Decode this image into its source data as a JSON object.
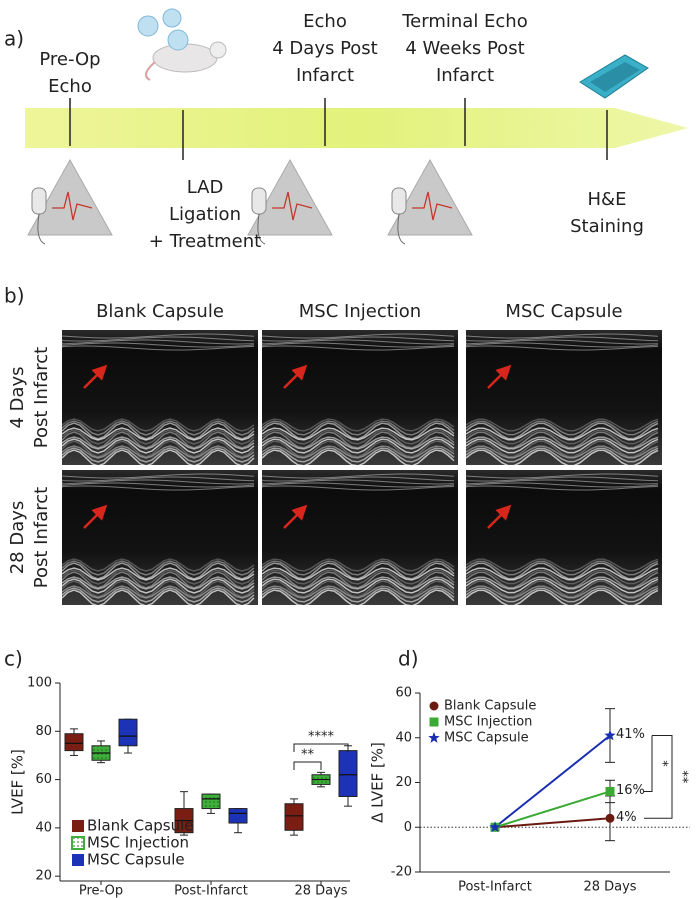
{
  "panel_a": {
    "label": "a)",
    "events": [
      {
        "lines": [
          "Pre-Op",
          "Echo"
        ]
      },
      {
        "lines": [
          "LAD",
          "Ligation",
          "+ Treatment"
        ]
      },
      {
        "lines": [
          "Echo",
          "4 Days Post",
          "Infarct"
        ]
      },
      {
        "lines": [
          "Terminal Echo",
          "4 Weeks Post",
          "Infarct"
        ]
      },
      {
        "lines": [
          "H&E",
          "Staining"
        ]
      }
    ]
  },
  "panel_b": {
    "label": "b)",
    "columns": [
      "Blank Capsule",
      "MSC Injection",
      "MSC Capsule"
    ],
    "rows": [
      [
        "4 Days",
        "Post Infarct"
      ],
      [
        "28 Days",
        "Post Infarct"
      ]
    ]
  },
  "chart_data": [
    {
      "type": "box",
      "label": "c)",
      "ylabel": "LVEF [%]",
      "categories": [
        "Pre-Op",
        "Post-Infarct",
        "28 Days"
      ],
      "series": [
        {
          "name": "Blank Capsule",
          "color": "#7a1d12",
          "values": [
            [
              70,
              72,
              75,
              79,
              81
            ],
            [
              37,
              38,
              43,
              48,
              55
            ],
            [
              37,
              39,
              45,
              50,
              52
            ]
          ]
        },
        {
          "name": "MSC Injection",
          "color": "#3fae3b",
          "values": [
            [
              67,
              68,
              71,
              74,
              76
            ],
            [
              46,
              48,
              52,
              54,
              54
            ],
            [
              57,
              58,
              60,
              62,
              63
            ]
          ]
        },
        {
          "name": "MSC Capsule",
          "color": "#1c33b8",
          "values": [
            [
              71,
              74,
              78,
              85,
              85
            ],
            [
              38,
              42,
              46,
              48,
              48
            ],
            [
              49,
              53,
              62,
              72,
              74
            ]
          ]
        }
      ],
      "ylim": [
        18,
        100
      ],
      "yticks": [
        20,
        40,
        60,
        80,
        100
      ],
      "annotations": [
        "**",
        "****"
      ]
    },
    {
      "type": "line",
      "label": "d)",
      "ylabel": "Δ LVEF [%]",
      "categories": [
        "Post-Infarct",
        "28 Days"
      ],
      "series": [
        {
          "name": "Blank Capsule",
          "color": "#6b1a10",
          "marker": "circle",
          "values": [
            0,
            4
          ],
          "errors": [
            null,
            10
          ],
          "value_labels": [
            null,
            "4%"
          ]
        },
        {
          "name": "MSC Injection",
          "color": "#3aaa35",
          "marker": "square",
          "values": [
            0,
            16
          ],
          "errors": [
            null,
            5
          ],
          "value_labels": [
            null,
            "16%"
          ]
        },
        {
          "name": "MSC Capsule",
          "color": "#1a2fb0",
          "marker": "star",
          "values": [
            0,
            41
          ],
          "errors": [
            null,
            12
          ],
          "value_labels": [
            null,
            "41%"
          ]
        }
      ],
      "ylim": [
        -20,
        60
      ],
      "yticks": [
        -20,
        0,
        20,
        40,
        60
      ],
      "annotations": [
        "*",
        "**"
      ]
    }
  ]
}
